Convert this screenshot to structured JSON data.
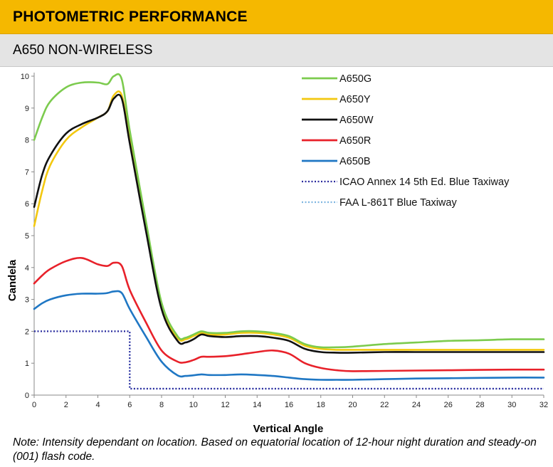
{
  "header": {
    "title": "PHOTOMETRIC PERFORMANCE",
    "subtitle": "A650 NON-WIRELESS"
  },
  "note": "Note: Intensity dependant on location. Based on equatorial location of 12-hour night duration and steady-on (001) flash code.",
  "chart_data": {
    "type": "line",
    "xlabel": "Vertical Angle",
    "ylabel": "Candela",
    "xlim": [
      0,
      32
    ],
    "ylim": [
      0,
      10
    ],
    "xticks": [
      "0",
      "2",
      "4",
      "6",
      "8",
      "10",
      "12",
      "14",
      "16",
      "18",
      "20",
      "22",
      "24",
      "26",
      "28",
      "30",
      "32"
    ],
    "yticks": [
      "0",
      "1",
      "2",
      "3",
      "4",
      "5",
      "6",
      "7",
      "8",
      "9",
      "10"
    ],
    "grid": false,
    "legend_position": "top-right",
    "series": [
      {
        "name": "A650G",
        "color": "#7ccb4e",
        "style": "solid",
        "x": [
          0,
          0.5,
          1,
          2,
          3,
          4,
          4.6,
          5,
          5.5,
          6,
          7,
          8,
          9,
          9.5,
          10,
          10.5,
          11,
          12,
          13,
          14,
          15,
          16,
          17,
          18,
          19,
          20,
          22,
          24,
          26,
          28,
          30,
          32
        ],
        "y": [
          8.0,
          8.7,
          9.2,
          9.65,
          9.8,
          9.8,
          9.75,
          10.0,
          9.9,
          8.3,
          5.5,
          2.9,
          1.85,
          1.8,
          1.9,
          2.0,
          1.95,
          1.95,
          2.0,
          2.0,
          1.95,
          1.85,
          1.6,
          1.5,
          1.5,
          1.52,
          1.6,
          1.65,
          1.7,
          1.72,
          1.75,
          1.75
        ]
      },
      {
        "name": "A650Y",
        "color": "#f3c80f",
        "style": "solid",
        "x": [
          0,
          0.5,
          1,
          2,
          3,
          4,
          4.6,
          5,
          5.5,
          6,
          7,
          8,
          9,
          9.5,
          10,
          10.5,
          11,
          12,
          13,
          14,
          15,
          16,
          17,
          18,
          19,
          20,
          22,
          24,
          26,
          28,
          30,
          32
        ],
        "y": [
          5.3,
          6.4,
          7.2,
          8.0,
          8.4,
          8.7,
          8.9,
          9.4,
          9.4,
          8.0,
          5.3,
          2.8,
          1.8,
          1.75,
          1.85,
          1.95,
          1.9,
          1.9,
          1.95,
          1.95,
          1.9,
          1.8,
          1.55,
          1.45,
          1.42,
          1.42,
          1.42,
          1.42,
          1.42,
          1.42,
          1.42,
          1.42
        ]
      },
      {
        "name": "A650W",
        "color": "#111111",
        "style": "solid",
        "x": [
          0,
          0.5,
          1,
          2,
          3,
          4,
          4.6,
          5,
          5.5,
          6,
          7,
          8,
          9,
          9.5,
          10,
          10.5,
          11,
          12,
          13,
          14,
          15,
          16,
          17,
          18,
          19,
          20,
          22,
          24,
          26,
          28,
          30,
          32
        ],
        "y": [
          5.9,
          6.9,
          7.5,
          8.2,
          8.5,
          8.7,
          8.9,
          9.3,
          9.3,
          7.9,
          5.2,
          2.7,
          1.7,
          1.65,
          1.75,
          1.9,
          1.85,
          1.82,
          1.85,
          1.85,
          1.8,
          1.7,
          1.45,
          1.35,
          1.33,
          1.33,
          1.35,
          1.35,
          1.35,
          1.35,
          1.35,
          1.35
        ]
      },
      {
        "name": "A650R",
        "color": "#e8212a",
        "style": "solid",
        "x": [
          0,
          0.5,
          1,
          2,
          3,
          4,
          4.6,
          5,
          5.5,
          6,
          7,
          8,
          9,
          9.5,
          10,
          10.5,
          11,
          12,
          13,
          14,
          15,
          16,
          17,
          18,
          19,
          20,
          22,
          24,
          26,
          28,
          30,
          32
        ],
        "y": [
          3.5,
          3.75,
          3.95,
          4.2,
          4.3,
          4.1,
          4.05,
          4.15,
          4.05,
          3.3,
          2.3,
          1.4,
          1.05,
          1.03,
          1.1,
          1.2,
          1.2,
          1.22,
          1.28,
          1.35,
          1.4,
          1.3,
          1.0,
          0.85,
          0.78,
          0.75,
          0.76,
          0.77,
          0.78,
          0.79,
          0.8,
          0.8
        ]
      },
      {
        "name": "A650B",
        "color": "#1f77c4",
        "style": "solid",
        "x": [
          0,
          0.5,
          1,
          2,
          3,
          4,
          4.6,
          5,
          5.5,
          6,
          7,
          8,
          9,
          9.5,
          10,
          10.5,
          11,
          12,
          13,
          14,
          15,
          16,
          17,
          18,
          19,
          20,
          22,
          24,
          26,
          28,
          30,
          32
        ],
        "y": [
          2.7,
          2.88,
          3.0,
          3.13,
          3.18,
          3.18,
          3.2,
          3.25,
          3.2,
          2.7,
          1.85,
          1.05,
          0.62,
          0.6,
          0.62,
          0.65,
          0.63,
          0.63,
          0.65,
          0.63,
          0.6,
          0.55,
          0.5,
          0.48,
          0.48,
          0.48,
          0.5,
          0.52,
          0.53,
          0.54,
          0.55,
          0.55
        ]
      },
      {
        "name": "ICAO Annex 14 5th Ed. Blue Taxiway",
        "color": "#2b2b9e",
        "style": "dotted",
        "x": [
          0,
          6,
          6,
          32
        ],
        "y": [
          2.0,
          2.0,
          0.2,
          0.2
        ]
      },
      {
        "name": "FAA L-861T Blue Taxiway",
        "color": "#7fb6e0",
        "style": "dotted",
        "x": [
          0,
          6,
          6,
          32
        ],
        "y": [
          2.0,
          2.0,
          0.2,
          0.2
        ]
      }
    ]
  }
}
